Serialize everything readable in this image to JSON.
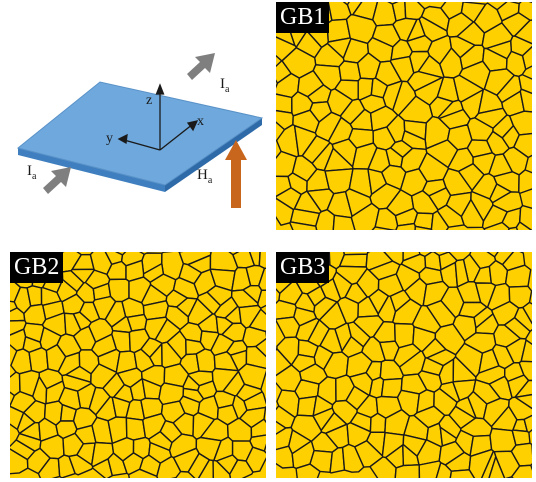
{
  "schematic": {
    "axes": {
      "x": "x",
      "y": "y",
      "z": "z"
    },
    "current_label": "I",
    "current_subscript": "a",
    "field_label": "H",
    "field_subscript": "a",
    "colors": {
      "slab_top": "#6ea8dc",
      "slab_edge": "#3f7fbf",
      "current_arrow": "#7f7f7f",
      "field_arrow": "#c8661e"
    }
  },
  "panels": [
    {
      "id": "gb1",
      "label": "GB1",
      "seed": 11,
      "cell": 19
    },
    {
      "id": "gb2",
      "label": "GB2",
      "seed": 29,
      "cell": 17
    },
    {
      "id": "gb3",
      "label": "GB3",
      "seed": 47,
      "cell": 18
    }
  ],
  "grain_colors": {
    "fill": "#ffd000",
    "boundary": "#1a1a1a"
  }
}
